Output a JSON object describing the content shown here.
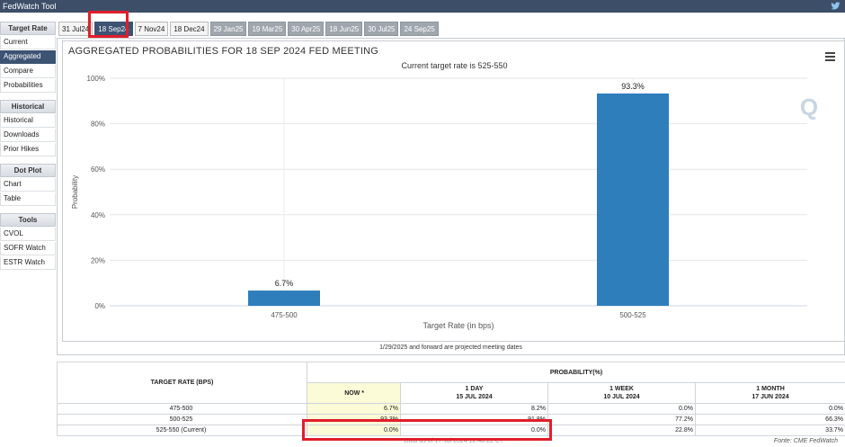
{
  "app": {
    "title": "FedWatch Tool",
    "twitter_icon": "twitter-icon"
  },
  "sidebar": {
    "sections": [
      {
        "heading": "Target Rate",
        "items": [
          "Current",
          "Aggregated",
          "Compare",
          "Probabilities"
        ],
        "active": 1
      },
      {
        "heading": "Historical",
        "items": [
          "Historical",
          "Downloads",
          "Prior Hikes"
        ]
      },
      {
        "heading": "Dot Plot",
        "items": [
          "Chart",
          "Table"
        ]
      },
      {
        "heading": "Tools",
        "items": [
          "CVOL",
          "SOFR Watch",
          "ESTR Watch"
        ]
      }
    ]
  },
  "tabs": [
    {
      "label": "31 Jul24",
      "state": "normal"
    },
    {
      "label": "18 Sep24",
      "state": "selected"
    },
    {
      "label": "7 Nov24",
      "state": "normal"
    },
    {
      "label": "18 Dec24",
      "state": "normal"
    },
    {
      "label": "29 Jan25",
      "state": "grey"
    },
    {
      "label": "19 Mar25",
      "state": "grey"
    },
    {
      "label": "30 Apr25",
      "state": "grey"
    },
    {
      "label": "18 Jun25",
      "state": "grey"
    },
    {
      "label": "30 Jul25",
      "state": "grey"
    },
    {
      "label": "24 Sep25",
      "state": "grey"
    }
  ],
  "chart": {
    "title": "AGGREGATED PROBABILITIES FOR 18 SEP 2024 FED MEETING",
    "subtitle": "Current target rate is 525-550",
    "menu_icon": "hamburger-menu-icon",
    "watermark": "Q"
  },
  "chart_data": {
    "type": "bar",
    "categories": [
      "475-500",
      "500-525"
    ],
    "values": [
      6.7,
      93.3
    ],
    "value_labels": [
      "6.7%",
      "93.3%"
    ],
    "xlabel": "Target Rate (in bps)",
    "ylabel": "Probability",
    "yticks": [
      "0%",
      "20%",
      "40%",
      "60%",
      "80%",
      "100%"
    ],
    "ylim": [
      0,
      100
    ],
    "bar_color": "#2e7ebb",
    "grid": true
  },
  "footnote": "1/29/2025 and forward are projected meeting dates",
  "table": {
    "rate_header": "TARGET RATE (BPS)",
    "prob_header": "PROBABILITY(%)",
    "columns": [
      {
        "l1": "NOW *",
        "l2": ""
      },
      {
        "l1": "1 DAY",
        "l2": "15 JUL 2024"
      },
      {
        "l1": "1 WEEK",
        "l2": "10 JUL 2024"
      },
      {
        "l1": "1 MONTH",
        "l2": "17 JUN 2024"
      }
    ],
    "rows": [
      {
        "rate": "475-500",
        "now": "6.7%",
        "day": "8.2%",
        "week": "0.0%",
        "month": "0.0%"
      },
      {
        "rate": "500-525",
        "now": "93.3%",
        "day": "91.8%",
        "week": "77.2%",
        "month": "66.3%"
      },
      {
        "rate": "525-550 (Current)",
        "now": "0.0%",
        "day": "0.0%",
        "week": "22.8%",
        "month": "33.7%"
      }
    ],
    "data_asof": "* Data as of 17 Jul 2024 12:48:22 CT",
    "source": "Fonte: CME FedWatch"
  },
  "highlight_color": "#e01e2a"
}
